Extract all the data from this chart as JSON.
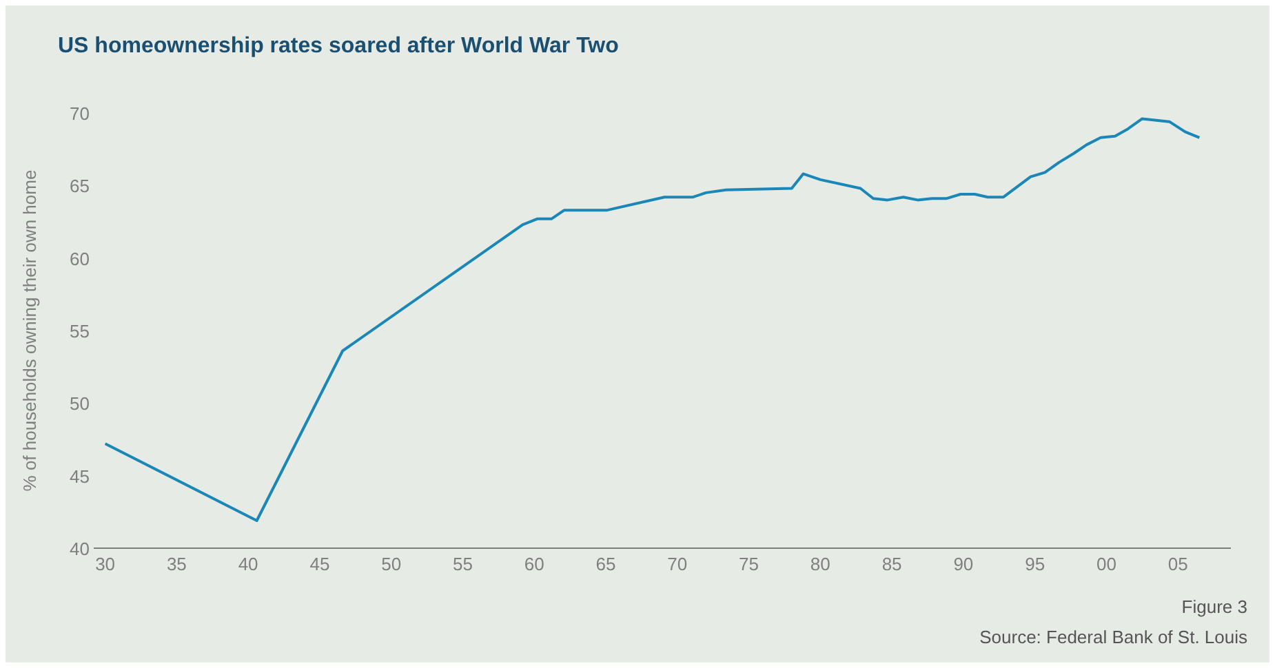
{
  "chart_data": {
    "type": "line",
    "title": "US homeownership rates soared after World War Two",
    "ylabel": "% of households owning their own home",
    "x": [
      1930,
      1940.6,
      1946.6,
      1959.2,
      1960.2,
      1961.2,
      1962.1,
      1965.1,
      1969.1,
      1971.1,
      1972,
      1973.4,
      1978,
      1978.8,
      1980,
      1982.8,
      1983.7,
      1984.7,
      1985.8,
      1986.8,
      1987.8,
      1988.8,
      1989.8,
      1990.8,
      1991.7,
      1992.8,
      1994.7,
      1995.7,
      1996.7,
      1997.7,
      1998.6,
      1999.6,
      2000.6,
      2001.5,
      2002.5,
      2004.4,
      2005.5,
      2006.5
    ],
    "series": [
      {
        "color": "#1a87b8",
        "values": [
          47.2,
          41.9,
          53.6,
          62.3,
          62.7,
          62.7,
          63.3,
          63.3,
          64.2,
          64.2,
          64.5,
          64.7,
          64.8,
          65.8,
          65.4,
          64.8,
          64.1,
          64.0,
          64.2,
          64.0,
          64.1,
          64.1,
          64.4,
          64.4,
          64.2,
          64.2,
          65.6,
          65.9,
          66.6,
          67.2,
          67.8,
          68.3,
          68.4,
          68.9,
          69.6,
          69.4,
          68.7,
          68.3
        ]
      }
    ],
    "xlim": [
      1929.2,
      2008.7
    ],
    "xticks": [
      {
        "value": 1930,
        "label": "30"
      },
      {
        "value": 1935,
        "label": "35"
      },
      {
        "value": 1940,
        "label": "40"
      },
      {
        "value": 1945,
        "label": "45"
      },
      {
        "value": 1950,
        "label": "50"
      },
      {
        "value": 1955,
        "label": "55"
      },
      {
        "value": 1960,
        "label": "60"
      },
      {
        "value": 1965,
        "label": "65"
      },
      {
        "value": 1970,
        "label": "70"
      },
      {
        "value": 1975,
        "label": "75"
      },
      {
        "value": 1980,
        "label": "80"
      },
      {
        "value": 1985,
        "label": "85"
      },
      {
        "value": 1990,
        "label": "90"
      },
      {
        "value": 1995,
        "label": "95"
      },
      {
        "value": 2000,
        "label": "00"
      },
      {
        "value": 2005,
        "label": "05"
      }
    ],
    "ylim": [
      40,
      70
    ],
    "yticks": [
      40,
      45,
      50,
      55,
      60,
      65,
      70
    ],
    "grid": false,
    "annotations": [
      "Figure 3",
      "Source: Federal Bank of St. Louis"
    ]
  }
}
